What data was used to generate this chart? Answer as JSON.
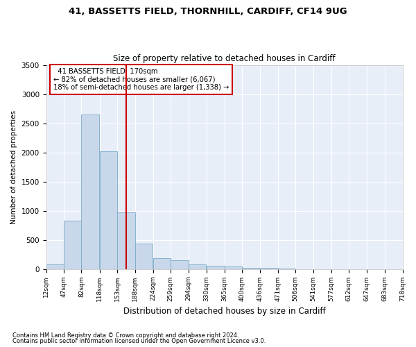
{
  "title1": "41, BASSETTS FIELD, THORNHILL, CARDIFF, CF14 9UG",
  "title2": "Size of property relative to detached houses in Cardiff",
  "xlabel": "Distribution of detached houses by size in Cardiff",
  "ylabel": "Number of detached properties",
  "footnote1": "Contains HM Land Registry data © Crown copyright and database right 2024.",
  "footnote2": "Contains public sector information licensed under the Open Government Licence v3.0.",
  "annotation_line1": "  41 BASSETTS FIELD: 170sqm  ",
  "annotation_line2": "← 82% of detached houses are smaller (6,067)",
  "annotation_line3": "18% of semi-detached houses are larger (1,338) →",
  "property_size": 170,
  "bin_edges": [
    12,
    47,
    82,
    118,
    153,
    188,
    224,
    259,
    294,
    330,
    365,
    400,
    436,
    471,
    506,
    541,
    577,
    612,
    647,
    683,
    718
  ],
  "bar_values": [
    75,
    830,
    2650,
    2020,
    970,
    440,
    185,
    145,
    80,
    60,
    45,
    20,
    15,
    5,
    0,
    0,
    0,
    0,
    0,
    0
  ],
  "bar_color": "#c8d8ea",
  "bar_edge_color": "#7aaac8",
  "vline_color": "#cc0000",
  "vline_x": 170,
  "annotation_box_color": "#cc0000",
  "background_color": "#e8eef8",
  "ylim": [
    0,
    3500
  ],
  "yticks": [
    0,
    500,
    1000,
    1500,
    2000,
    2500,
    3000,
    3500
  ]
}
